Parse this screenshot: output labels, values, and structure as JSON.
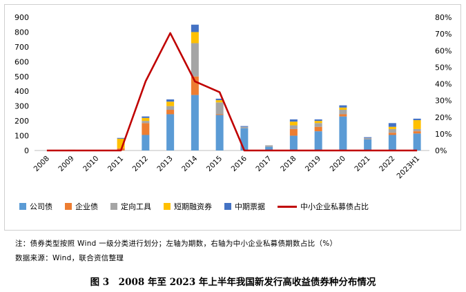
{
  "chart_data": {
    "type": "bar",
    "stacked": true,
    "secondary_line": true,
    "categories": [
      "2008",
      "2009",
      "2010",
      "2011",
      "2012",
      "2013",
      "2014",
      "2015",
      "2016",
      "2017",
      "2018",
      "2019",
      "2020",
      "2021",
      "2022",
      "2023H1"
    ],
    "series": [
      {
        "name": "公司债",
        "color": "#5b9bd5",
        "values": [
          0,
          0,
          0,
          0,
          105,
          245,
          375,
          240,
          150,
          25,
          100,
          130,
          230,
          75,
          105,
          115
        ]
      },
      {
        "name": "企业债",
        "color": "#ed7d31",
        "values": [
          0,
          5,
          0,
          15,
          80,
          30,
          125,
          5,
          0,
          0,
          45,
          30,
          15,
          0,
          15,
          15
        ]
      },
      {
        "name": "定向工具",
        "color": "#a5a5a5",
        "values": [
          0,
          0,
          0,
          0,
          15,
          25,
          225,
          80,
          10,
          10,
          25,
          25,
          30,
          10,
          25,
          15
        ]
      },
      {
        "name": "短期融资券",
        "color": "#ffc000",
        "values": [
          0,
          0,
          0,
          65,
          20,
          30,
          75,
          15,
          0,
          0,
          25,
          15,
          15,
          0,
          15,
          60
        ]
      },
      {
        "name": "中期票据",
        "color": "#4472c4",
        "values": [
          0,
          0,
          0,
          5,
          10,
          15,
          50,
          10,
          5,
          0,
          15,
          10,
          15,
          5,
          25,
          10
        ]
      }
    ],
    "line_series": {
      "name": "中小企业私募债占比",
      "color": "#c00000",
      "values": [
        0,
        0,
        0,
        0,
        41.5,
        70.5,
        41.5,
        35,
        0,
        0,
        0,
        0,
        0,
        0,
        0,
        0
      ]
    },
    "y_left": {
      "min": 0,
      "max": 900,
      "step": 100,
      "ticks": [
        "0",
        "100",
        "200",
        "300",
        "400",
        "500",
        "600",
        "700",
        "800",
        "900"
      ]
    },
    "y_right": {
      "min": 0,
      "max": 80,
      "step": 10,
      "ticks": [
        "0%",
        "10%",
        "20%",
        "30%",
        "40%",
        "50%",
        "60%",
        "70%",
        "80%"
      ]
    },
    "grid": false,
    "legend_position": "bottom"
  },
  "notes": {
    "note_line": "注：债券类型按照 Wind 一级分类进行划分；左轴为期数，右轴为中小企业私募债期数占比（%）",
    "source_line": "数据来源：Wind，联合资信整理"
  },
  "caption": "图 3　2008 年至 2023 年上半年我国新发行高收益债券种分布情况"
}
